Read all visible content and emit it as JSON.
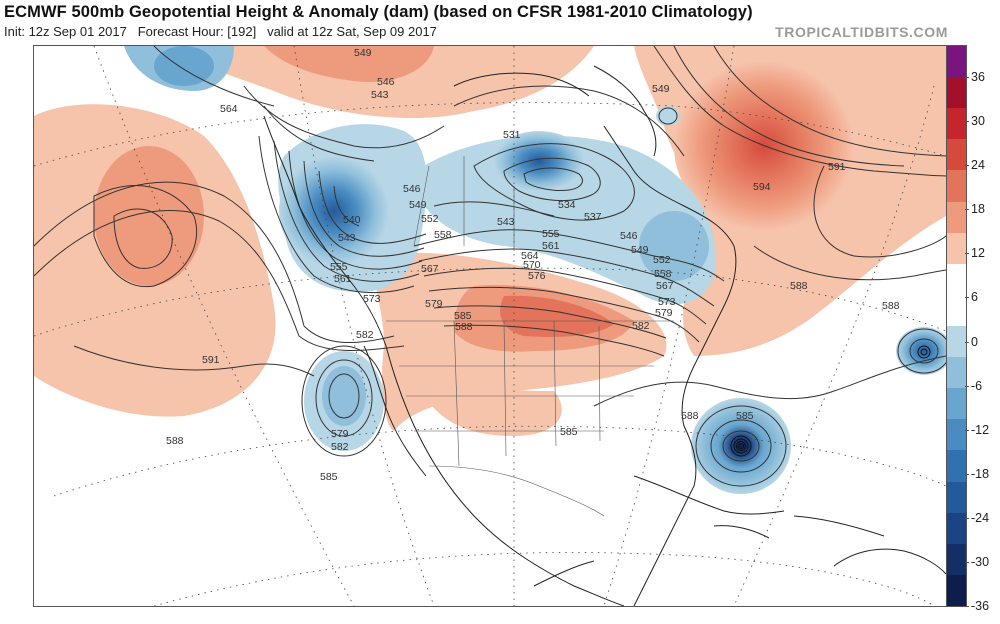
{
  "header": {
    "title": "ECMWF 500mb Geopotential Height & Anomaly (dam) (based on CFSR 1981-2010 Climatology)",
    "init": "Init: 12z Sep 01 2017",
    "forecast_hour": "Forecast Hour: [192]",
    "valid": "valid at 12z Sat, Sep 09 2017",
    "brand": "TROPICALTIDBITS.COM"
  },
  "colorbar": {
    "ticks": [
      "36",
      "30",
      "24",
      "18",
      "12",
      "6",
      "0",
      "-6",
      "-12",
      "-18",
      "-24",
      "-30",
      "-36"
    ],
    "colors": [
      "#7a157f",
      "#a2102a",
      "#c4262b",
      "#d64a3d",
      "#e3735a",
      "#ee9a7d",
      "#f6c3ab",
      "#ffffff",
      "#ffffff",
      "#b7d6e6",
      "#8fbfdb",
      "#68a6cf",
      "#4a8cc2",
      "#3271b0",
      "#235a9b",
      "#1c4482",
      "#142f66",
      "#0d1e4c"
    ]
  },
  "map": {
    "contour_labels": [
      {
        "text": "564"
      },
      {
        "text": "549"
      },
      {
        "text": "546"
      },
      {
        "text": "543"
      },
      {
        "text": "540"
      },
      {
        "text": "543"
      },
      {
        "text": "555"
      },
      {
        "text": "561"
      },
      {
        "text": "573"
      },
      {
        "text": "582"
      },
      {
        "text": "591"
      },
      {
        "text": "588"
      },
      {
        "text": "585"
      },
      {
        "text": "579"
      },
      {
        "text": "582"
      },
      {
        "text": "546"
      },
      {
        "text": "549"
      },
      {
        "text": "552"
      },
      {
        "text": "558"
      },
      {
        "text": "567"
      },
      {
        "text": "579"
      },
      {
        "text": "585"
      },
      {
        "text": "588"
      },
      {
        "text": "531"
      },
      {
        "text": "543"
      },
      {
        "text": "555"
      },
      {
        "text": "561"
      },
      {
        "text": "564"
      },
      {
        "text": "570"
      },
      {
        "text": "576"
      },
      {
        "text": "534"
      },
      {
        "text": "537"
      },
      {
        "text": "546"
      },
      {
        "text": "549"
      },
      {
        "text": "552"
      },
      {
        "text": "558"
      },
      {
        "text": "567"
      },
      {
        "text": "573"
      },
      {
        "text": "579"
      },
      {
        "text": "582"
      },
      {
        "text": "549"
      },
      {
        "text": "594"
      },
      {
        "text": "591"
      },
      {
        "text": "588"
      },
      {
        "text": "588"
      },
      {
        "text": "588"
      },
      {
        "text": "585"
      },
      {
        "text": "585"
      }
    ]
  }
}
